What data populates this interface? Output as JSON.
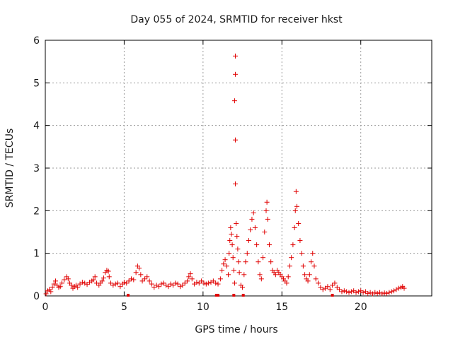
{
  "chart_data": {
    "type": "scatter",
    "title": "Day 055 of 2024, SRMTID for receiver hkst",
    "xlabel": "GPS time / hours",
    "ylabel": "SRMTID / TECUs",
    "xlim": [
      0,
      24.5
    ],
    "ylim": [
      0,
      6
    ],
    "x_ticks": [
      0,
      5,
      10,
      15,
      20
    ],
    "y_ticks": [
      0,
      1,
      2,
      3,
      4,
      5,
      6
    ],
    "grid": true,
    "marker": "+",
    "series": [
      {
        "name": "SRMTID",
        "color": "#e00000",
        "points": [
          [
            0.05,
            0.05
          ],
          [
            0.15,
            0.12
          ],
          [
            0.25,
            0.15
          ],
          [
            0.35,
            0.1
          ],
          [
            0.45,
            0.2
          ],
          [
            0.55,
            0.28
          ],
          [
            0.65,
            0.35
          ],
          [
            0.75,
            0.25
          ],
          [
            0.85,
            0.2
          ],
          [
            0.95,
            0.22
          ],
          [
            1.05,
            0.3
          ],
          [
            1.2,
            0.38
          ],
          [
            1.35,
            0.45
          ],
          [
            1.45,
            0.4
          ],
          [
            1.55,
            0.3
          ],
          [
            1.65,
            0.25
          ],
          [
            1.75,
            0.18
          ],
          [
            1.85,
            0.22
          ],
          [
            1.95,
            0.25
          ],
          [
            2.05,
            0.2
          ],
          [
            2.2,
            0.28
          ],
          [
            2.35,
            0.32
          ],
          [
            2.5,
            0.3
          ],
          [
            2.65,
            0.27
          ],
          [
            2.8,
            0.32
          ],
          [
            2.95,
            0.35
          ],
          [
            3.05,
            0.38
          ],
          [
            3.15,
            0.45
          ],
          [
            3.25,
            0.3
          ],
          [
            3.4,
            0.25
          ],
          [
            3.5,
            0.3
          ],
          [
            3.6,
            0.35
          ],
          [
            3.7,
            0.42
          ],
          [
            3.8,
            0.55
          ],
          [
            3.9,
            0.6
          ],
          [
            4.0,
            0.58
          ],
          [
            4.05,
            0.45
          ],
          [
            4.15,
            0.3
          ],
          [
            4.3,
            0.25
          ],
          [
            4.45,
            0.28
          ],
          [
            4.6,
            0.3
          ],
          [
            4.75,
            0.22
          ],
          [
            4.9,
            0.28
          ],
          [
            5.0,
            0.32
          ],
          [
            5.15,
            0.3
          ],
          [
            5.3,
            0.35
          ],
          [
            5.45,
            0.4
          ],
          [
            5.6,
            0.38
          ],
          [
            5.75,
            0.55
          ],
          [
            5.85,
            0.7
          ],
          [
            5.95,
            0.65
          ],
          [
            6.05,
            0.5
          ],
          [
            6.15,
            0.35
          ],
          [
            6.3,
            0.4
          ],
          [
            6.45,
            0.45
          ],
          [
            6.6,
            0.35
          ],
          [
            6.75,
            0.28
          ],
          [
            6.9,
            0.2
          ],
          [
            7.05,
            0.25
          ],
          [
            7.2,
            0.22
          ],
          [
            7.35,
            0.28
          ],
          [
            7.5,
            0.3
          ],
          [
            7.65,
            0.25
          ],
          [
            7.8,
            0.22
          ],
          [
            7.95,
            0.28
          ],
          [
            8.1,
            0.25
          ],
          [
            8.25,
            0.3
          ],
          [
            8.4,
            0.28
          ],
          [
            8.55,
            0.22
          ],
          [
            8.7,
            0.25
          ],
          [
            8.85,
            0.3
          ],
          [
            9.0,
            0.35
          ],
          [
            9.1,
            0.45
          ],
          [
            9.2,
            0.52
          ],
          [
            9.3,
            0.4
          ],
          [
            9.45,
            0.28
          ],
          [
            9.6,
            0.32
          ],
          [
            9.75,
            0.3
          ],
          [
            9.9,
            0.35
          ],
          [
            10.05,
            0.3
          ],
          [
            10.2,
            0.28
          ],
          [
            10.35,
            0.3
          ],
          [
            10.5,
            0.32
          ],
          [
            10.65,
            0.35
          ],
          [
            10.8,
            0.3
          ],
          [
            10.95,
            0.28
          ],
          [
            11.1,
            0.4
          ],
          [
            11.2,
            0.6
          ],
          [
            11.3,
            0.75
          ],
          [
            11.4,
            0.85
          ],
          [
            11.5,
            0.7
          ],
          [
            11.6,
            0.5
          ],
          [
            11.65,
            1.0
          ],
          [
            11.7,
            1.3
          ],
          [
            11.75,
            1.6
          ],
          [
            11.8,
            1.45
          ],
          [
            11.85,
            1.2
          ],
          [
            11.9,
            0.9
          ],
          [
            11.95,
            0.6
          ],
          [
            12.0,
            0.3
          ],
          [
            12.05,
            2.63
          ],
          [
            12.05,
            3.66
          ],
          [
            12.0,
            4.58
          ],
          [
            12.05,
            5.2
          ],
          [
            12.05,
            5.63
          ],
          [
            12.1,
            1.7
          ],
          [
            12.15,
            1.4
          ],
          [
            12.2,
            1.1
          ],
          [
            12.25,
            0.8
          ],
          [
            12.3,
            0.55
          ],
          [
            12.4,
            0.25
          ],
          [
            12.5,
            0.2
          ],
          [
            12.6,
            0.5
          ],
          [
            12.7,
            0.8
          ],
          [
            12.8,
            1.0
          ],
          [
            12.9,
            1.3
          ],
          [
            13.0,
            1.55
          ],
          [
            13.1,
            1.8
          ],
          [
            13.2,
            1.95
          ],
          [
            13.3,
            1.6
          ],
          [
            13.4,
            1.2
          ],
          [
            13.5,
            0.8
          ],
          [
            13.6,
            0.5
          ],
          [
            13.7,
            0.4
          ],
          [
            13.8,
            0.9
          ],
          [
            13.9,
            1.5
          ],
          [
            14.0,
            2.0
          ],
          [
            14.05,
            2.2
          ],
          [
            14.1,
            1.8
          ],
          [
            14.2,
            1.2
          ],
          [
            14.3,
            0.8
          ],
          [
            14.4,
            0.6
          ],
          [
            14.5,
            0.55
          ],
          [
            14.6,
            0.5
          ],
          [
            14.7,
            0.6
          ],
          [
            14.8,
            0.55
          ],
          [
            14.9,
            0.5
          ],
          [
            15.0,
            0.45
          ],
          [
            15.1,
            0.4
          ],
          [
            15.2,
            0.35
          ],
          [
            15.3,
            0.3
          ],
          [
            15.4,
            0.45
          ],
          [
            15.5,
            0.7
          ],
          [
            15.6,
            0.9
          ],
          [
            15.7,
            1.2
          ],
          [
            15.8,
            1.6
          ],
          [
            15.85,
            2.0
          ],
          [
            15.9,
            2.45
          ],
          [
            15.95,
            2.1
          ],
          [
            16.05,
            1.7
          ],
          [
            16.15,
            1.3
          ],
          [
            16.25,
            1.0
          ],
          [
            16.35,
            0.7
          ],
          [
            16.45,
            0.5
          ],
          [
            16.55,
            0.4
          ],
          [
            16.65,
            0.35
          ],
          [
            16.75,
            0.5
          ],
          [
            16.85,
            0.8
          ],
          [
            16.95,
            1.0
          ],
          [
            17.05,
            0.7
          ],
          [
            17.15,
            0.4
          ],
          [
            17.3,
            0.3
          ],
          [
            17.45,
            0.2
          ],
          [
            17.6,
            0.15
          ],
          [
            17.75,
            0.18
          ],
          [
            17.9,
            0.22
          ],
          [
            18.05,
            0.15
          ],
          [
            18.2,
            0.25
          ],
          [
            18.35,
            0.3
          ],
          [
            18.5,
            0.2
          ],
          [
            18.65,
            0.15
          ],
          [
            18.8,
            0.1
          ],
          [
            18.95,
            0.12
          ],
          [
            19.1,
            0.1
          ],
          [
            19.25,
            0.08
          ],
          [
            19.4,
            0.1
          ],
          [
            19.55,
            0.12
          ],
          [
            19.7,
            0.08
          ],
          [
            19.85,
            0.1
          ],
          [
            20.0,
            0.12
          ],
          [
            20.15,
            0.08
          ],
          [
            20.3,
            0.1
          ],
          [
            20.45,
            0.06
          ],
          [
            20.6,
            0.08
          ],
          [
            20.75,
            0.05
          ],
          [
            20.9,
            0.08
          ],
          [
            21.05,
            0.06
          ],
          [
            21.2,
            0.08
          ],
          [
            21.35,
            0.05
          ],
          [
            21.5,
            0.07
          ],
          [
            21.65,
            0.06
          ],
          [
            21.8,
            0.08
          ],
          [
            21.95,
            0.1
          ],
          [
            22.1,
            0.12
          ],
          [
            22.25,
            0.15
          ],
          [
            22.4,
            0.18
          ],
          [
            22.55,
            0.2
          ],
          [
            22.65,
            0.22
          ],
          [
            22.75,
            0.18
          ]
        ]
      }
    ],
    "zero_markers_x": [
      5.25,
      10.85,
      10.95,
      11.95,
      12.55,
      18.2
    ]
  }
}
